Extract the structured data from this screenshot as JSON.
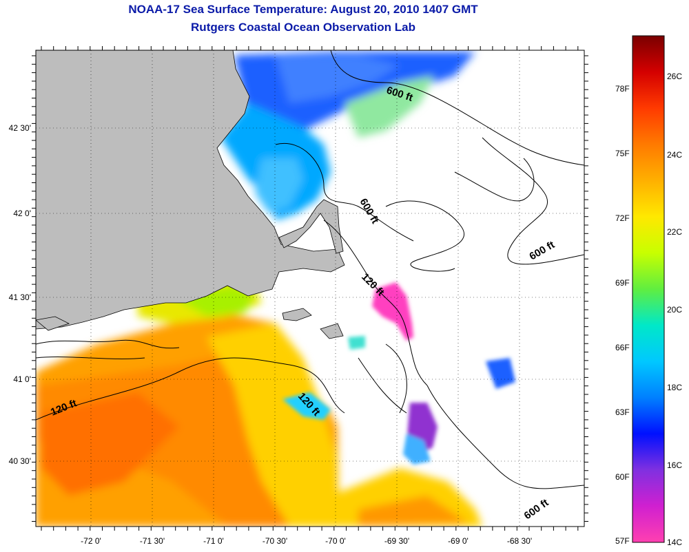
{
  "title": "NOAA-17 Sea Surface Temperature:  August 20, 2010 1407 GMT",
  "subtitle": "Rutgers Coastal Ocean Observation Lab",
  "longitude_labels": [
    "-72 0'",
    "-71 30'",
    "-71 0'",
    "-70 30'",
    "-70 0'",
    "-69 30'",
    "-69 0'",
    "-68 30'"
  ],
  "latitude_labels": [
    "42 30'",
    "42 0'",
    "41 30'",
    "41 0'",
    "40 30'"
  ],
  "contour_labels": [
    "600 ft",
    "600 ft",
    "600 ft",
    "600 ft",
    "120 ft",
    "120 ft",
    "120 ft"
  ],
  "colorbar": {
    "fahrenheit_labels": [
      "78F",
      "75F",
      "72F",
      "69F",
      "66F",
      "63F",
      "60F",
      "57F"
    ],
    "celsius_labels": [
      "26C",
      "24C",
      "22C",
      "20C",
      "18C",
      "16C",
      "14C"
    ],
    "gradient_stops": [
      "#7a0000",
      "#d40000",
      "#ff3a00",
      "#ff7a00",
      "#ffb000",
      "#ffe800",
      "#c8ff00",
      "#60ee40",
      "#00e8c8",
      "#00c8ff",
      "#0080ff",
      "#0010ff",
      "#8030e0",
      "#d020d0",
      "#ff40b0"
    ]
  },
  "colors": {
    "land": "#bdbdbd",
    "title": "#0a1aa8"
  }
}
